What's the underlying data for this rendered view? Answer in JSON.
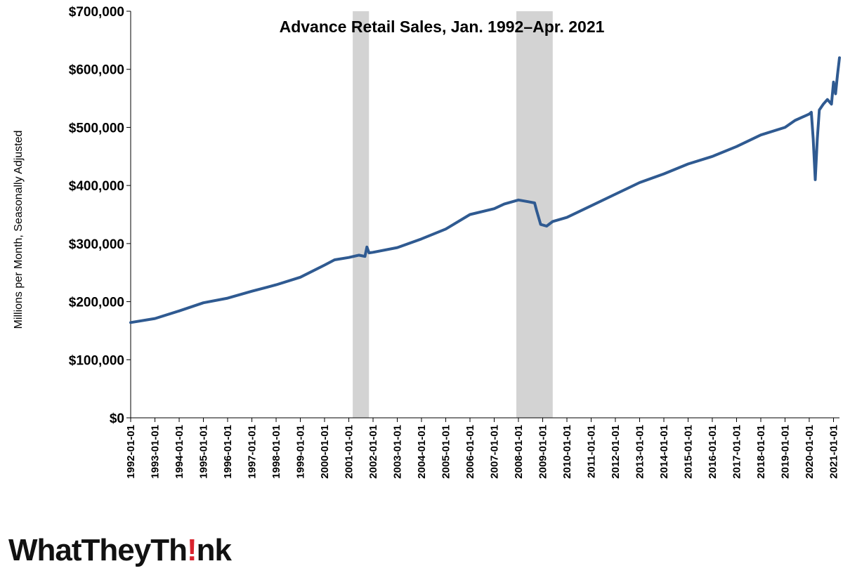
{
  "chart_data": {
    "type": "line",
    "title": "Advance Retail Sales, Jan. 1992–Apr. 2021",
    "ylabel": "Millions per Month, Seasonally Adjusted",
    "xlabel": "",
    "ylim": [
      0,
      700000
    ],
    "yticks": [
      "$0",
      "$100,000",
      "$200,000",
      "$300,000",
      "$400,000",
      "$500,000",
      "$600,000",
      "$700,000"
    ],
    "ytick_values": [
      0,
      100000,
      200000,
      300000,
      400000,
      500000,
      600000,
      700000
    ],
    "xticks": [
      "1992-01-01",
      "1993-01-01",
      "1994-01-01",
      "1995-01-01",
      "1996-01-01",
      "1997-01-01",
      "1998-01-01",
      "1999-01-01",
      "2000-01-01",
      "2001-01-01",
      "2002-01-01",
      "2003-01-01",
      "2004-01-01",
      "2005-01-01",
      "2006-01-01",
      "2007-01-01",
      "2008-01-01",
      "2009-01-01",
      "2010-01-01",
      "2011-01-01",
      "2012-01-01",
      "2013-01-01",
      "2014-01-01",
      "2015-01-01",
      "2016-01-01",
      "2017-01-01",
      "2018-01-01",
      "2019-01-01",
      "2020-01-01",
      "2021-01-01"
    ],
    "xlim": [
      "1992-01-01",
      "2021-04-01"
    ],
    "recessions": [
      {
        "start": "2001-03-01",
        "end": "2001-11-01"
      },
      {
        "start": "2007-12-01",
        "end": "2009-06-01"
      }
    ],
    "recession_color": "#d3d3d3",
    "line_color": "#2f5a91",
    "grid": false,
    "legend": "none",
    "series": [
      {
        "x": [
          "1992-01-01",
          "1993-01-01",
          "1994-01-01",
          "1995-01-01",
          "1996-01-01",
          "1997-01-01",
          "1998-01-01",
          "1999-01-01",
          "2000-01-01",
          "2000-06-01",
          "2001-01-01",
          "2001-06-01",
          "2001-09-01",
          "2001-10-01",
          "2001-11-01",
          "2002-01-01",
          "2003-01-01",
          "2004-01-01",
          "2005-01-01",
          "2006-01-01",
          "2007-01-01",
          "2007-06-01",
          "2008-01-01",
          "2008-06-01",
          "2008-09-01",
          "2008-10-01",
          "2008-12-01",
          "2009-03-01",
          "2009-06-01",
          "2010-01-01",
          "2011-01-01",
          "2012-01-01",
          "2013-01-01",
          "2014-01-01",
          "2015-01-01",
          "2016-01-01",
          "2017-01-01",
          "2018-01-01",
          "2019-01-01",
          "2019-06-01",
          "2020-01-01",
          "2020-02-01",
          "2020-03-01",
          "2020-04-01",
          "2020-05-01",
          "2020-06-01",
          "2020-08-01",
          "2020-10-01",
          "2020-12-01",
          "2021-01-01",
          "2021-02-01",
          "2021-03-01",
          "2021-04-01"
        ],
        "values": [
          164000,
          171000,
          184000,
          198000,
          206000,
          218000,
          229000,
          242000,
          263000,
          272000,
          276000,
          280000,
          278000,
          294000,
          284000,
          285000,
          293000,
          308000,
          325000,
          350000,
          360000,
          368000,
          375000,
          372000,
          370000,
          357000,
          333000,
          330000,
          338000,
          345000,
          365000,
          385000,
          405000,
          420000,
          437000,
          450000,
          467000,
          487000,
          500000,
          512000,
          523000,
          526000,
          480000,
          410000,
          480000,
          530000,
          540000,
          548000,
          540000,
          578000,
          558000,
          590000,
          620000
        ]
      }
    ]
  },
  "logo": {
    "text_before": "WhatTheyTh",
    "text_after": "nk",
    "accent_color": "#d9232e"
  }
}
